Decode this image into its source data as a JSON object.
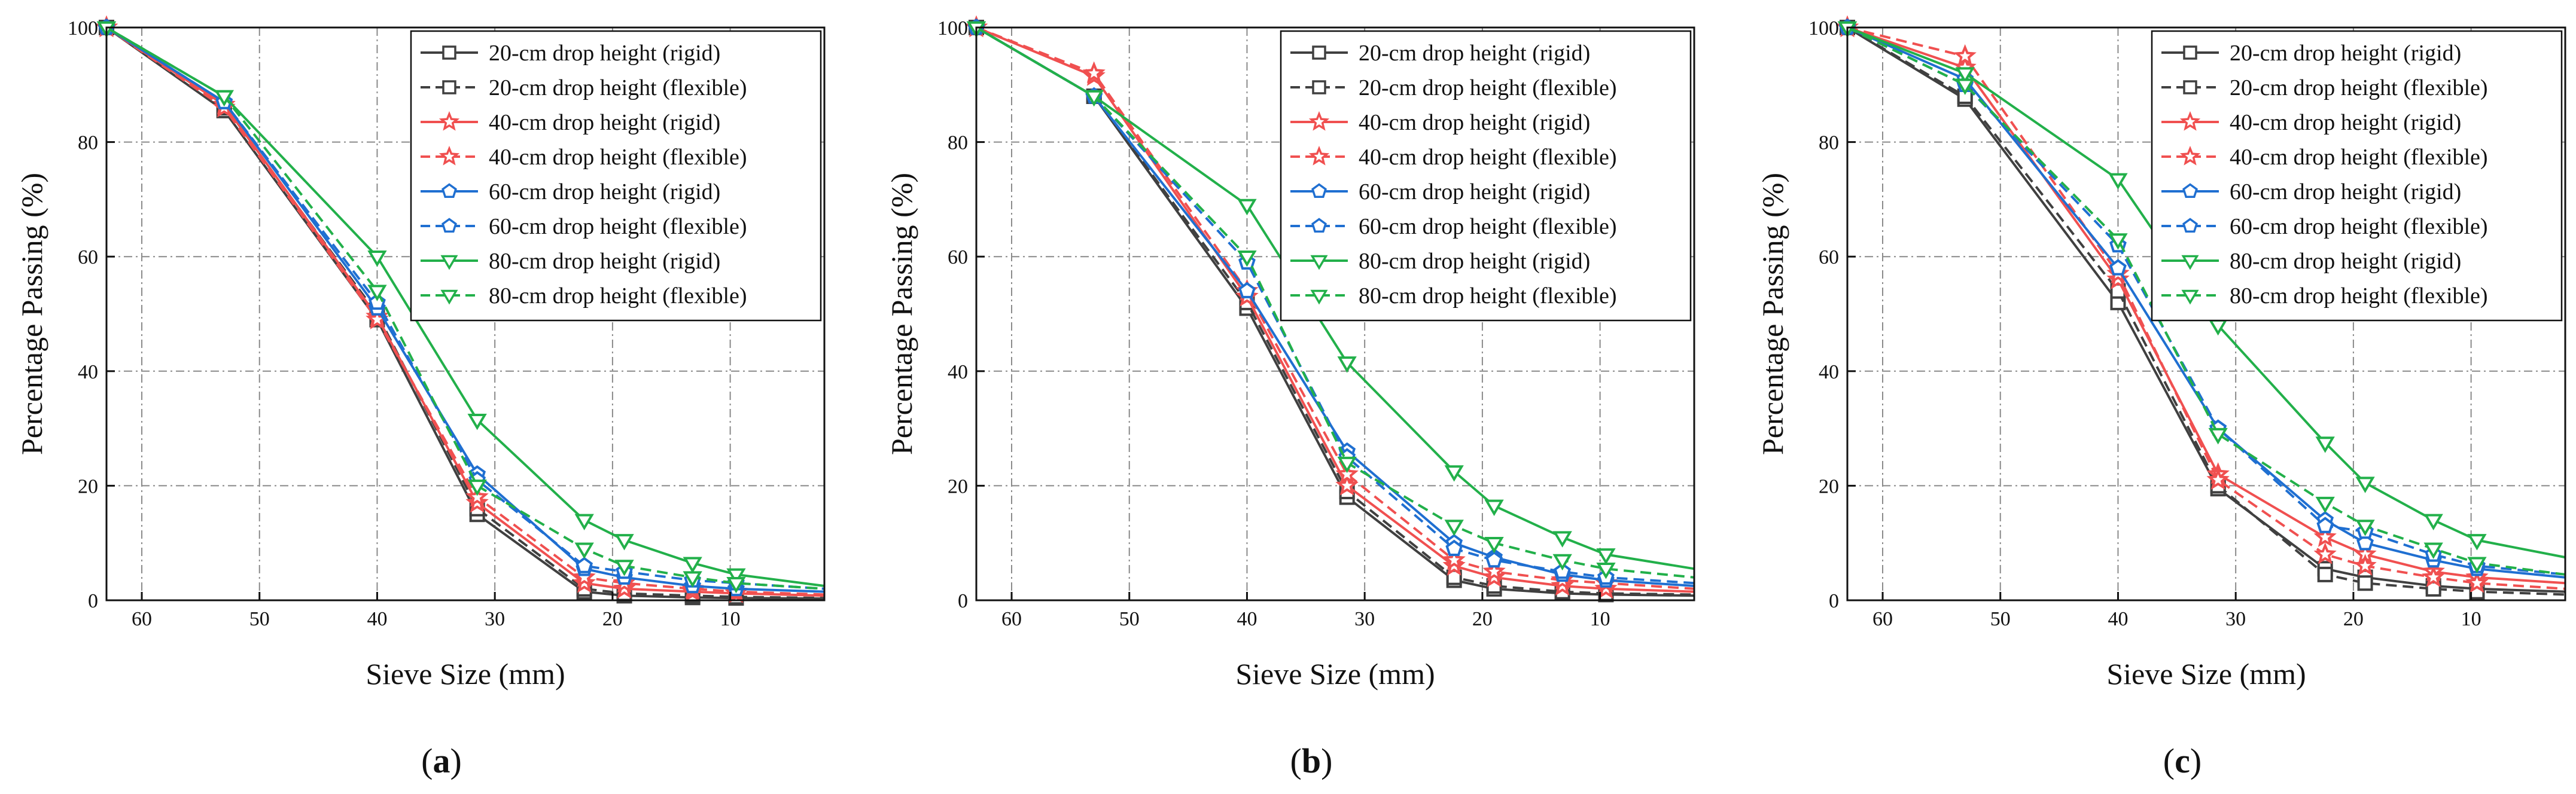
{
  "figure": {
    "description_labels": [
      "a",
      "b",
      "c"
    ]
  },
  "chart_data": [
    {
      "type": "line",
      "panel_label": "a",
      "xlabel": "Sieve Size (mm)",
      "ylabel": "Percentage Passing (%)",
      "xlim": [
        63,
        2
      ],
      "ylim": [
        0,
        100
      ],
      "xticks": [
        60,
        50,
        40,
        30,
        20,
        10
      ],
      "yticks": [
        0,
        20,
        40,
        60,
        80,
        100
      ],
      "grid": true,
      "legend_position": "top-right",
      "x": [
        63,
        53,
        40,
        31.5,
        22.4,
        19,
        13.2,
        9.5,
        2
      ],
      "series": [
        {
          "name": "20-cm drop height (rigid)",
          "color": "#404040",
          "dash": "solid",
          "marker": "square",
          "values": [
            100,
            85.5,
            49,
            15,
            1.5,
            0.8,
            0.5,
            0.4,
            0.3
          ]
        },
        {
          "name": "20-cm drop height (flexible)",
          "color": "#404040",
          "dash": "dashed",
          "marker": "square",
          "values": [
            100,
            86,
            50,
            16,
            2,
            1.2,
            0.8,
            0.6,
            0.4
          ]
        },
        {
          "name": "40-cm drop height (rigid)",
          "color": "#f05050",
          "dash": "solid",
          "marker": "star",
          "values": [
            100,
            86.5,
            49.5,
            17,
            3,
            2,
            1.5,
            1.2,
            0.8
          ]
        },
        {
          "name": "40-cm drop height (flexible)",
          "color": "#f05050",
          "dash": "dashed",
          "marker": "star",
          "values": [
            100,
            86,
            49,
            18,
            4,
            3,
            2,
            1.5,
            1
          ]
        },
        {
          "name": "60-cm drop height (rigid)",
          "color": "#1f6fd1",
          "dash": "solid",
          "marker": "pentagon",
          "values": [
            100,
            87,
            51,
            22,
            5.5,
            4,
            2.5,
            2,
            1.5
          ]
        },
        {
          "name": "60-cm drop height (flexible)",
          "color": "#1f6fd1",
          "dash": "dashed",
          "marker": "pentagon",
          "values": [
            100,
            87,
            52,
            21,
            6,
            5,
            3.5,
            3,
            2
          ]
        },
        {
          "name": "80-cm drop height (rigid)",
          "color": "#22b04a",
          "dash": "solid",
          "marker": "triangle-down",
          "values": [
            100,
            88,
            60,
            31.5,
            14,
            10.5,
            6.5,
            4.5,
            2.5
          ]
        },
        {
          "name": "80-cm drop height (flexible)",
          "color": "#22b04a",
          "dash": "dashed",
          "marker": "triangle-down",
          "values": [
            100,
            88,
            54,
            20,
            9,
            6,
            4,
            3,
            2
          ]
        }
      ]
    },
    {
      "type": "line",
      "panel_label": "b",
      "xlabel": "Sieve Size (mm)",
      "ylabel": "Percentage Passing (%)",
      "xlim": [
        63,
        2
      ],
      "ylim": [
        0,
        100
      ],
      "xticks": [
        60,
        50,
        40,
        30,
        20,
        10
      ],
      "yticks": [
        0,
        20,
        40,
        60,
        80,
        100
      ],
      "grid": true,
      "legend_position": "top-right",
      "x": [
        63,
        53,
        40,
        31.5,
        22.4,
        19,
        13.2,
        9.5,
        2
      ],
      "series": [
        {
          "name": "20-cm drop height (rigid)",
          "color": "#404040",
          "dash": "solid",
          "marker": "square",
          "values": [
            100,
            88,
            51,
            18,
            3.5,
            2,
            1.2,
            1,
            0.8
          ]
        },
        {
          "name": "20-cm drop height (flexible)",
          "color": "#404040",
          "dash": "dashed",
          "marker": "square",
          "values": [
            100,
            88,
            52,
            19,
            4,
            2.5,
            1.5,
            1.2,
            1
          ]
        },
        {
          "name": "40-cm drop height (rigid)",
          "color": "#f05050",
          "dash": "solid",
          "marker": "star",
          "values": [
            100,
            91.5,
            53,
            20,
            6,
            4,
            2.5,
            2,
            1.5
          ]
        },
        {
          "name": "40-cm drop height (flexible)",
          "color": "#f05050",
          "dash": "dashed",
          "marker": "star",
          "values": [
            100,
            92,
            54,
            22,
            7,
            5,
            3.5,
            3,
            2
          ]
        },
        {
          "name": "60-cm drop height (rigid)",
          "color": "#1f6fd1",
          "dash": "solid",
          "marker": "pentagon",
          "values": [
            100,
            88,
            54,
            26,
            10,
            7.5,
            4.5,
            3.5,
            2.5
          ]
        },
        {
          "name": "60-cm drop height (flexible)",
          "color": "#1f6fd1",
          "dash": "dashed",
          "marker": "pentagon",
          "values": [
            100,
            88,
            59,
            25,
            9,
            7,
            5,
            4,
            3
          ]
        },
        {
          "name": "80-cm drop height (rigid)",
          "color": "#22b04a",
          "dash": "solid",
          "marker": "triangle-down",
          "values": [
            100,
            88,
            69,
            41.5,
            22.5,
            16.5,
            11,
            8,
            5.5
          ]
        },
        {
          "name": "80-cm drop height (flexible)",
          "color": "#22b04a",
          "dash": "dashed",
          "marker": "triangle-down",
          "values": [
            100,
            88,
            60,
            24,
            13,
            10,
            7,
            5.5,
            4
          ]
        }
      ]
    },
    {
      "type": "line",
      "panel_label": "c",
      "xlabel": "Sieve Size (mm)",
      "ylabel": "Percentage Passing (%)",
      "xlim": [
        63,
        2
      ],
      "ylim": [
        0,
        100
      ],
      "xticks": [
        60,
        50,
        40,
        30,
        20,
        10
      ],
      "yticks": [
        0,
        20,
        40,
        60,
        80,
        100
      ],
      "grid": true,
      "legend_position": "top-right",
      "x": [
        63,
        53,
        40,
        31.5,
        22.4,
        19,
        13.2,
        9.5,
        2
      ],
      "series": [
        {
          "name": "20-cm drop height (rigid)",
          "color": "#404040",
          "dash": "solid",
          "marker": "square",
          "values": [
            100,
            87.5,
            52,
            19.5,
            5.5,
            4,
            2.5,
            2,
            1.5
          ]
        },
        {
          "name": "20-cm drop height (flexible)",
          "color": "#404040",
          "dash": "dashed",
          "marker": "square",
          "values": [
            100,
            88,
            54,
            20,
            4.5,
            3,
            2,
            1.5,
            1
          ]
        },
        {
          "name": "40-cm drop height (rigid)",
          "color": "#f05050",
          "dash": "solid",
          "marker": "star",
          "values": [
            100,
            93,
            56,
            22,
            11,
            8,
            5,
            4,
            3
          ]
        },
        {
          "name": "40-cm drop height (flexible)",
          "color": "#f05050",
          "dash": "dashed",
          "marker": "star",
          "values": [
            100,
            95,
            57,
            21,
            8,
            6,
            4,
            3,
            2
          ]
        },
        {
          "name": "60-cm drop height (rigid)",
          "color": "#1f6fd1",
          "dash": "solid",
          "marker": "pentagon",
          "values": [
            100,
            91,
            58,
            30,
            14,
            10,
            7,
            5.5,
            4
          ]
        },
        {
          "name": "60-cm drop height (flexible)",
          "color": "#1f6fd1",
          "dash": "dashed",
          "marker": "pentagon",
          "values": [
            100,
            90,
            62,
            30,
            13,
            12,
            8,
            6,
            4.5
          ]
        },
        {
          "name": "80-cm drop height (rigid)",
          "color": "#22b04a",
          "dash": "solid",
          "marker": "triangle-down",
          "values": [
            100,
            92,
            73.5,
            48,
            27.5,
            20.5,
            14,
            10.5,
            7.5
          ]
        },
        {
          "name": "80-cm drop height (flexible)",
          "color": "#22b04a",
          "dash": "dashed",
          "marker": "triangle-down",
          "values": [
            100,
            90,
            63,
            29,
            17,
            13,
            9,
            6.5,
            4.5
          ]
        }
      ]
    }
  ]
}
